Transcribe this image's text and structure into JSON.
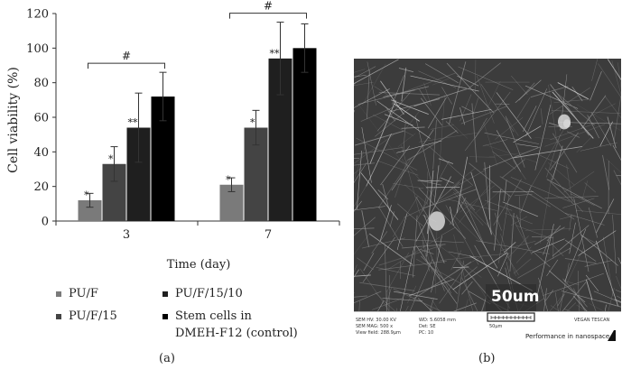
{
  "chart_data": {
    "type": "bar",
    "xlabel": "Time (day)",
    "ylabel": "Cell viability (%)",
    "ylim": [
      0,
      120
    ],
    "yticks": [
      0,
      20,
      40,
      60,
      80,
      100,
      120
    ],
    "categories": [
      "3",
      "7"
    ],
    "series": [
      {
        "name": "PU/F",
        "color": "#7a7a7a",
        "values": [
          12,
          21
        ],
        "errors": [
          4,
          4
        ],
        "marks": [
          "*",
          "*"
        ]
      },
      {
        "name": "PU/F/15",
        "color": "#444444",
        "values": [
          33,
          54
        ],
        "errors": [
          10,
          10
        ],
        "marks": [
          "*",
          "*"
        ]
      },
      {
        "name": "PU/F/15/10",
        "color": "#1f1f1f",
        "values": [
          54,
          94
        ],
        "errors": [
          20,
          21
        ],
        "marks": [
          "**",
          "**"
        ]
      },
      {
        "name": "Stem cells in DMEH-F12 (control)",
        "color": "#000000",
        "values": [
          72,
          100
        ],
        "errors": [
          14,
          14
        ],
        "marks": [
          "",
          ""
        ]
      }
    ],
    "significance": [
      {
        "category": "3",
        "label": "#"
      },
      {
        "category": "7",
        "label": "#"
      }
    ],
    "grid": false,
    "legend_position": "below"
  },
  "legend": [
    {
      "label": "PU/F",
      "color": "#7a7a7a"
    },
    {
      "label": "PU/F/15",
      "color": "#444444"
    },
    {
      "label": "PU/F/15/10",
      "color": "#1f1f1f"
    },
    {
      "label": "Stem cells in",
      "label2": "DMEH-F12 (control)",
      "color": "#000000"
    }
  ],
  "panel_labels": {
    "left": "(a)",
    "right": "(b)"
  },
  "sem": {
    "scale_bar": "50um",
    "meta": {
      "col1": [
        "SEM HV: 30.00 KV",
        "SEM MAG: 500 x",
        "View field: 288.9μm"
      ],
      "col2": [
        "WD: 5.6058 mm",
        "Det: SE",
        "PC: 10"
      ],
      "col3": [
        "50μm"
      ],
      "brand": "VEGAN TESCAN",
      "slogan": "Performance in nanospace"
    }
  }
}
